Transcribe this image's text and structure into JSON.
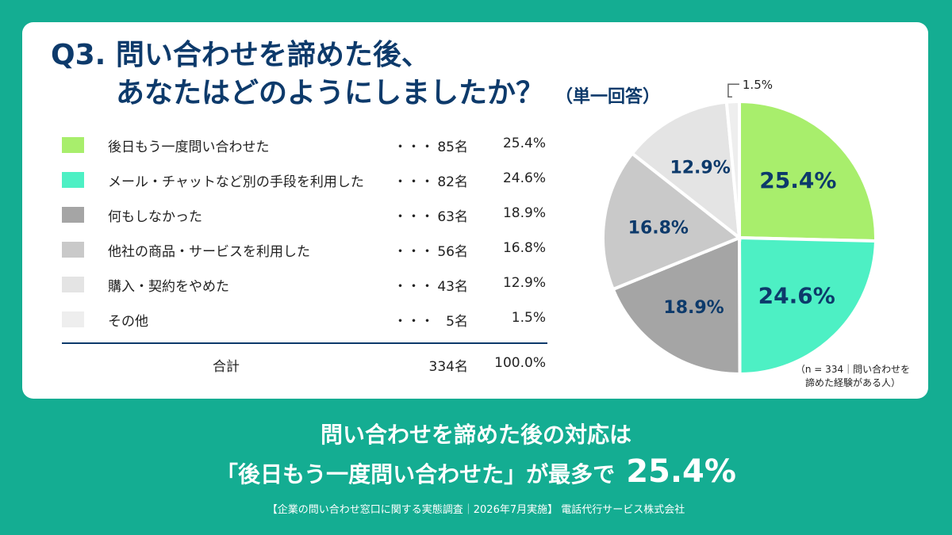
{
  "title": {
    "line1": "Q3. 問い合わせを諦めた後、",
    "line2": "あなたはどのようにしましたか？",
    "sub": "（単一回答）"
  },
  "chart_data": {
    "type": "pie",
    "categories": [
      "後日もう一度問い合わせた",
      "メール・チャットなど別の手段を利用した",
      "何もしなかった",
      "他社の商品・サービスを利用した",
      "購入・契約をやめた",
      "その他"
    ],
    "counts": [
      "85名",
      "82名",
      "63名",
      "56名",
      "43名",
      "5名"
    ],
    "values": [
      25.4,
      24.6,
      18.9,
      16.8,
      12.9,
      1.5
    ],
    "labels": [
      "25.4%",
      "24.6%",
      "18.9%",
      "16.8%",
      "12.9%",
      "1.5%"
    ],
    "colors": [
      "#a8ee6c",
      "#4df0c4",
      "#a5a5a5",
      "#c9c9c9",
      "#e4e4e4",
      "#eeeeee"
    ],
    "dots": "・・・",
    "total": {
      "label": "合計",
      "count": "334名",
      "percent": "100.0%"
    },
    "note_line1": "（n = 334｜問い合わせを",
    "note_line2": "諦めた経験がある人）"
  },
  "conclusion": {
    "line1": "問い合わせを諦めた後の対応は",
    "line2": "「後日もう一度問い合わせた」が最多で",
    "highlight": "25.4%"
  },
  "source": "【企業の問い合わせ窓口に関する実態調査｜2026年7月実施】 電話代行サービス株式会社"
}
